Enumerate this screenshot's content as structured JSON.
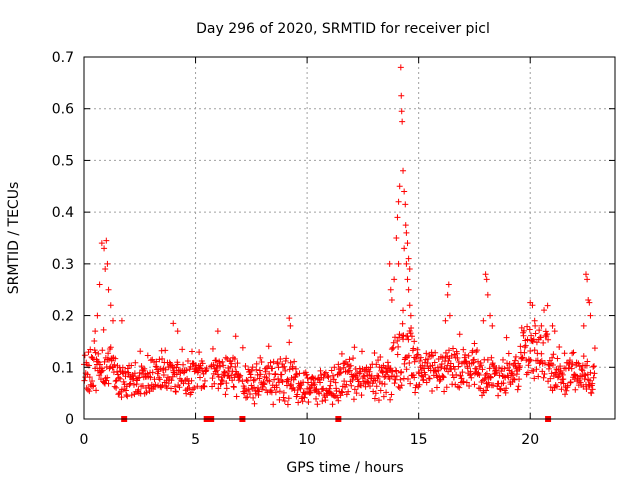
{
  "chart_data": {
    "type": "scatter",
    "title": "Day 296 of 2020, SRMTID for receiver picl",
    "xlabel": "GPS time / hours",
    "ylabel": "SRMTID / TECUs",
    "xlim": [
      0,
      23.8
    ],
    "ylim": [
      0,
      0.7
    ],
    "xticks": [
      "0",
      "5",
      "10",
      "15",
      "20"
    ],
    "xtick_values": [
      0,
      5,
      10,
      15,
      20
    ],
    "yticks": [
      "0",
      "0.1",
      "0.2",
      "0.3",
      "0.4",
      "0.5",
      "0.6",
      "0.7"
    ],
    "ytick_values": [
      0,
      0.1,
      0.2,
      0.3,
      0.4,
      0.5,
      0.6,
      0.7
    ],
    "grid": true,
    "marker": "plus",
    "color": "#ff0000",
    "sample_interval_hours": 0.02,
    "segments": [
      {
        "start": 0.0,
        "end": 1.5,
        "base": 0.095,
        "spread": 0.04
      },
      {
        "start": 1.5,
        "end": 3.0,
        "base": 0.075,
        "spread": 0.035
      },
      {
        "start": 3.0,
        "end": 5.5,
        "base": 0.085,
        "spread": 0.035
      },
      {
        "start": 5.7,
        "end": 7.0,
        "base": 0.085,
        "spread": 0.04
      },
      {
        "start": 7.1,
        "end": 9.5,
        "base": 0.075,
        "spread": 0.04
      },
      {
        "start": 9.5,
        "end": 11.4,
        "base": 0.06,
        "spread": 0.03
      },
      {
        "start": 11.4,
        "end": 13.8,
        "base": 0.075,
        "spread": 0.035
      },
      {
        "start": 13.8,
        "end": 14.8,
        "base": 0.12,
        "spread": 0.06
      },
      {
        "start": 14.8,
        "end": 17.5,
        "base": 0.095,
        "spread": 0.04
      },
      {
        "start": 17.5,
        "end": 19.5,
        "base": 0.085,
        "spread": 0.035
      },
      {
        "start": 19.5,
        "end": 20.8,
        "base": 0.13,
        "spread": 0.05
      },
      {
        "start": 20.8,
        "end": 22.9,
        "base": 0.085,
        "spread": 0.035
      }
    ],
    "bursts": [
      {
        "x": 0.8,
        "y": 0.34
      },
      {
        "x": 0.9,
        "y": 0.33
      },
      {
        "x": 1.0,
        "y": 0.345
      },
      {
        "x": 1.05,
        "y": 0.3
      },
      {
        "x": 0.95,
        "y": 0.29
      },
      {
        "x": 0.7,
        "y": 0.26
      },
      {
        "x": 1.1,
        "y": 0.25
      },
      {
        "x": 1.2,
        "y": 0.22
      },
      {
        "x": 0.6,
        "y": 0.2
      },
      {
        "x": 1.3,
        "y": 0.19
      },
      {
        "x": 0.5,
        "y": 0.17
      },
      {
        "x": 1.7,
        "y": 0.19
      },
      {
        "x": 4.0,
        "y": 0.185
      },
      {
        "x": 4.2,
        "y": 0.17
      },
      {
        "x": 6.0,
        "y": 0.17
      },
      {
        "x": 6.8,
        "y": 0.16
      },
      {
        "x": 9.2,
        "y": 0.195
      },
      {
        "x": 9.25,
        "y": 0.18
      },
      {
        "x": 13.7,
        "y": 0.3
      },
      {
        "x": 13.75,
        "y": 0.25
      },
      {
        "x": 13.8,
        "y": 0.23
      },
      {
        "x": 13.9,
        "y": 0.27
      },
      {
        "x": 14.0,
        "y": 0.35
      },
      {
        "x": 14.05,
        "y": 0.39
      },
      {
        "x": 14.1,
        "y": 0.42
      },
      {
        "x": 14.15,
        "y": 0.45
      },
      {
        "x": 14.2,
        "y": 0.68
      },
      {
        "x": 14.22,
        "y": 0.625
      },
      {
        "x": 14.24,
        "y": 0.595
      },
      {
        "x": 14.26,
        "y": 0.575
      },
      {
        "x": 14.3,
        "y": 0.48
      },
      {
        "x": 14.35,
        "y": 0.44
      },
      {
        "x": 14.4,
        "y": 0.415
      },
      {
        "x": 14.42,
        "y": 0.375
      },
      {
        "x": 14.45,
        "y": 0.36
      },
      {
        "x": 14.5,
        "y": 0.34
      },
      {
        "x": 14.55,
        "y": 0.31
      },
      {
        "x": 14.6,
        "y": 0.29
      },
      {
        "x": 14.35,
        "y": 0.33
      },
      {
        "x": 14.45,
        "y": 0.3
      },
      {
        "x": 14.5,
        "y": 0.27
      },
      {
        "x": 14.55,
        "y": 0.25
      },
      {
        "x": 14.3,
        "y": 0.21
      },
      {
        "x": 14.6,
        "y": 0.22
      },
      {
        "x": 14.65,
        "y": 0.2
      },
      {
        "x": 14.1,
        "y": 0.3
      },
      {
        "x": 14.7,
        "y": 0.16
      },
      {
        "x": 14.8,
        "y": 0.15
      },
      {
        "x": 16.3,
        "y": 0.24
      },
      {
        "x": 16.35,
        "y": 0.26
      },
      {
        "x": 16.4,
        "y": 0.2
      },
      {
        "x": 16.2,
        "y": 0.19
      },
      {
        "x": 18.0,
        "y": 0.28
      },
      {
        "x": 18.05,
        "y": 0.27
      },
      {
        "x": 18.1,
        "y": 0.24
      },
      {
        "x": 18.2,
        "y": 0.2
      },
      {
        "x": 17.9,
        "y": 0.19
      },
      {
        "x": 18.3,
        "y": 0.18
      },
      {
        "x": 20.0,
        "y": 0.225
      },
      {
        "x": 20.1,
        "y": 0.22
      },
      {
        "x": 20.2,
        "y": 0.19
      },
      {
        "x": 20.5,
        "y": 0.18
      },
      {
        "x": 21.0,
        "y": 0.18
      },
      {
        "x": 21.1,
        "y": 0.17
      },
      {
        "x": 22.5,
        "y": 0.28
      },
      {
        "x": 22.55,
        "y": 0.27
      },
      {
        "x": 22.6,
        "y": 0.23
      },
      {
        "x": 22.65,
        "y": 0.225
      },
      {
        "x": 22.7,
        "y": 0.2
      },
      {
        "x": 22.4,
        "y": 0.18
      }
    ],
    "gap_markers_x": [
      1.8,
      5.5,
      5.65,
      5.7,
      7.1,
      11.4,
      20.8
    ]
  }
}
